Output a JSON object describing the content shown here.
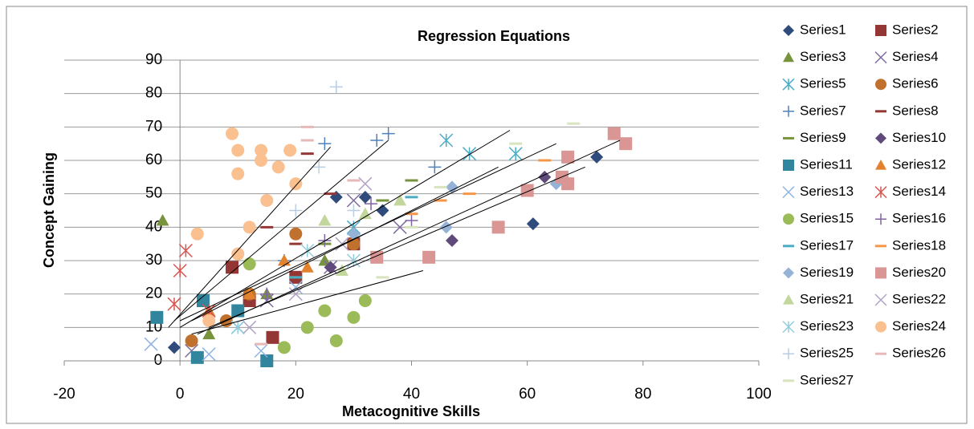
{
  "chart_data": {
    "type": "scatter",
    "title": "Regression Equations",
    "x_label": "Metacognitive Skills",
    "y_label": "Concept Gaining",
    "xlim": [
      -20,
      100
    ],
    "xticks": [
      -20,
      0,
      20,
      40,
      60,
      80,
      100
    ],
    "ylim": [
      0,
      90
    ],
    "yticks": [
      0,
      10,
      20,
      30,
      40,
      50,
      60,
      70,
      80,
      90
    ],
    "grid": true,
    "legend": "right",
    "series": [
      {
        "name": "Series1",
        "color": "#2f4b7c",
        "marker": "diamond",
        "x": [
          -1,
          27,
          32,
          35,
          72,
          61
        ],
        "y": [
          4,
          49,
          49,
          45,
          61,
          41
        ]
      },
      {
        "name": "Series2",
        "color": "#943634",
        "marker": "square",
        "x": [
          9,
          16,
          12,
          20,
          30
        ],
        "y": [
          28,
          7,
          18,
          25,
          35
        ]
      },
      {
        "name": "Series3",
        "color": "#77933c",
        "marker": "triangle",
        "x": [
          -3,
          5,
          15,
          25
        ],
        "y": [
          42,
          8,
          20,
          30
        ]
      },
      {
        "name": "Series4",
        "color": "#7f6aa0",
        "marker": "x",
        "x": [
          2,
          15,
          26,
          30,
          38
        ],
        "y": [
          3,
          18,
          28,
          48,
          40
        ]
      },
      {
        "name": "Series5",
        "color": "#4bacc6",
        "marker": "star",
        "x": [
          10,
          46,
          50,
          58,
          30
        ],
        "y": [
          10,
          66,
          62,
          62,
          40
        ]
      },
      {
        "name": "Series6",
        "color": "#c0712d",
        "marker": "circle",
        "x": [
          2,
          8,
          20,
          30,
          12
        ],
        "y": [
          6,
          12,
          38,
          35,
          20
        ]
      },
      {
        "name": "Series7",
        "color": "#4f81bd",
        "marker": "plus",
        "x": [
          25,
          34,
          36,
          44,
          18
        ],
        "y": [
          65,
          66,
          68,
          58,
          30
        ]
      },
      {
        "name": "Series8",
        "color": "#953735",
        "marker": "dash",
        "x": [
          22,
          15,
          26,
          20
        ],
        "y": [
          62,
          40,
          50,
          35
        ]
      },
      {
        "name": "Series9",
        "color": "#77933c",
        "marker": "dash",
        "x": [
          20,
          35,
          40,
          25
        ],
        "y": [
          25,
          48,
          54,
          35
        ]
      },
      {
        "name": "Series10",
        "color": "#604a7b",
        "marker": "diamond",
        "x": [
          10,
          26,
          47,
          63
        ],
        "y": [
          15,
          28,
          36,
          55
        ]
      },
      {
        "name": "Series11",
        "color": "#31859c",
        "marker": "square",
        "x": [
          -4,
          3,
          4,
          15,
          10
        ],
        "y": [
          13,
          1,
          18,
          0,
          15
        ]
      },
      {
        "name": "Series12",
        "color": "#e3822e",
        "marker": "triangle",
        "x": [
          5,
          18,
          22,
          12
        ],
        "y": [
          15,
          30,
          28,
          20
        ]
      },
      {
        "name": "Series13",
        "color": "#8eb4e3",
        "marker": "x",
        "x": [
          -5,
          5,
          14,
          20
        ],
        "y": [
          5,
          2,
          3,
          22
        ]
      },
      {
        "name": "Series14",
        "color": "#d9534f",
        "marker": "star",
        "x": [
          0,
          1,
          -1,
          5
        ],
        "y": [
          27,
          33,
          17,
          15
        ]
      },
      {
        "name": "Series15",
        "color": "#9bbb59",
        "marker": "circle",
        "x": [
          18,
          27,
          25,
          30,
          32,
          12,
          22
        ],
        "y": [
          4,
          6,
          15,
          13,
          18,
          29,
          10
        ]
      },
      {
        "name": "Series16",
        "color": "#8064a2",
        "marker": "plus",
        "x": [
          15,
          25,
          33,
          40
        ],
        "y": [
          20,
          36,
          47,
          42
        ]
      },
      {
        "name": "Series17",
        "color": "#4bacc6",
        "marker": "dash",
        "x": [
          20,
          40,
          30
        ],
        "y": [
          25,
          49,
          38
        ]
      },
      {
        "name": "Series18",
        "color": "#f79646",
        "marker": "dash",
        "x": [
          40,
          50,
          63,
          45
        ],
        "y": [
          44,
          50,
          60,
          48
        ]
      },
      {
        "name": "Series19",
        "color": "#95b3d7",
        "marker": "diamond",
        "x": [
          30,
          46,
          65,
          47
        ],
        "y": [
          38,
          40,
          53,
          52
        ]
      },
      {
        "name": "Series20",
        "color": "#d99694",
        "marker": "square",
        "x": [
          34,
          43,
          55,
          60,
          67,
          67,
          75,
          77,
          66
        ],
        "y": [
          31,
          31,
          40,
          51,
          61,
          53,
          68,
          65,
          55
        ]
      },
      {
        "name": "Series21",
        "color": "#c3d69b",
        "marker": "triangle",
        "x": [
          25,
          32,
          38,
          28
        ],
        "y": [
          42,
          44,
          48,
          27
        ]
      },
      {
        "name": "Series22",
        "color": "#b3a2c7",
        "marker": "x",
        "x": [
          12,
          20,
          32,
          28
        ],
        "y": [
          10,
          20,
          53,
          35
        ]
      },
      {
        "name": "Series23",
        "color": "#93cddd",
        "marker": "star",
        "x": [
          30,
          10,
          22
        ],
        "y": [
          30,
          10,
          33
        ]
      },
      {
        "name": "Series24",
        "color": "#fac090",
        "marker": "circle",
        "x": [
          9,
          10,
          10,
          14,
          14,
          17,
          19,
          20,
          12,
          3,
          15,
          10,
          5
        ],
        "y": [
          68,
          63,
          56,
          63,
          60,
          58,
          63,
          53,
          40,
          38,
          48,
          32,
          12
        ]
      },
      {
        "name": "Series25",
        "color": "#b9cde5",
        "marker": "plus",
        "x": [
          27,
          24,
          30,
          20
        ],
        "y": [
          82,
          58,
          45,
          45
        ]
      },
      {
        "name": "Series26",
        "color": "#e6b9b8",
        "marker": "dash",
        "x": [
          22,
          22,
          30,
          14
        ],
        "y": [
          66,
          70,
          54,
          5
        ]
      },
      {
        "name": "Series27",
        "color": "#d7e4bd",
        "marker": "dash",
        "x": [
          40,
          45,
          68,
          58,
          35
        ],
        "y": [
          40,
          52,
          71,
          65,
          25
        ]
      }
    ],
    "trendlines": [
      {
        "x": [
          2,
          42
        ],
        "y": [
          8,
          27
        ]
      },
      {
        "x": [
          -2,
          26
        ],
        "y": [
          10,
          64
        ]
      },
      {
        "x": [
          -1,
          36
        ],
        "y": [
          12,
          66
        ]
      },
      {
        "x": [
          0,
          57
        ],
        "y": [
          10,
          69
        ]
      },
      {
        "x": [
          0,
          65
        ],
        "y": [
          12,
          65
        ]
      },
      {
        "x": [
          3,
          76
        ],
        "y": [
          8,
          66
        ]
      },
      {
        "x": [
          5,
          70
        ],
        "y": [
          10,
          58
        ]
      },
      {
        "x": [
          2,
          55
        ],
        "y": [
          12,
          58
        ]
      }
    ]
  }
}
